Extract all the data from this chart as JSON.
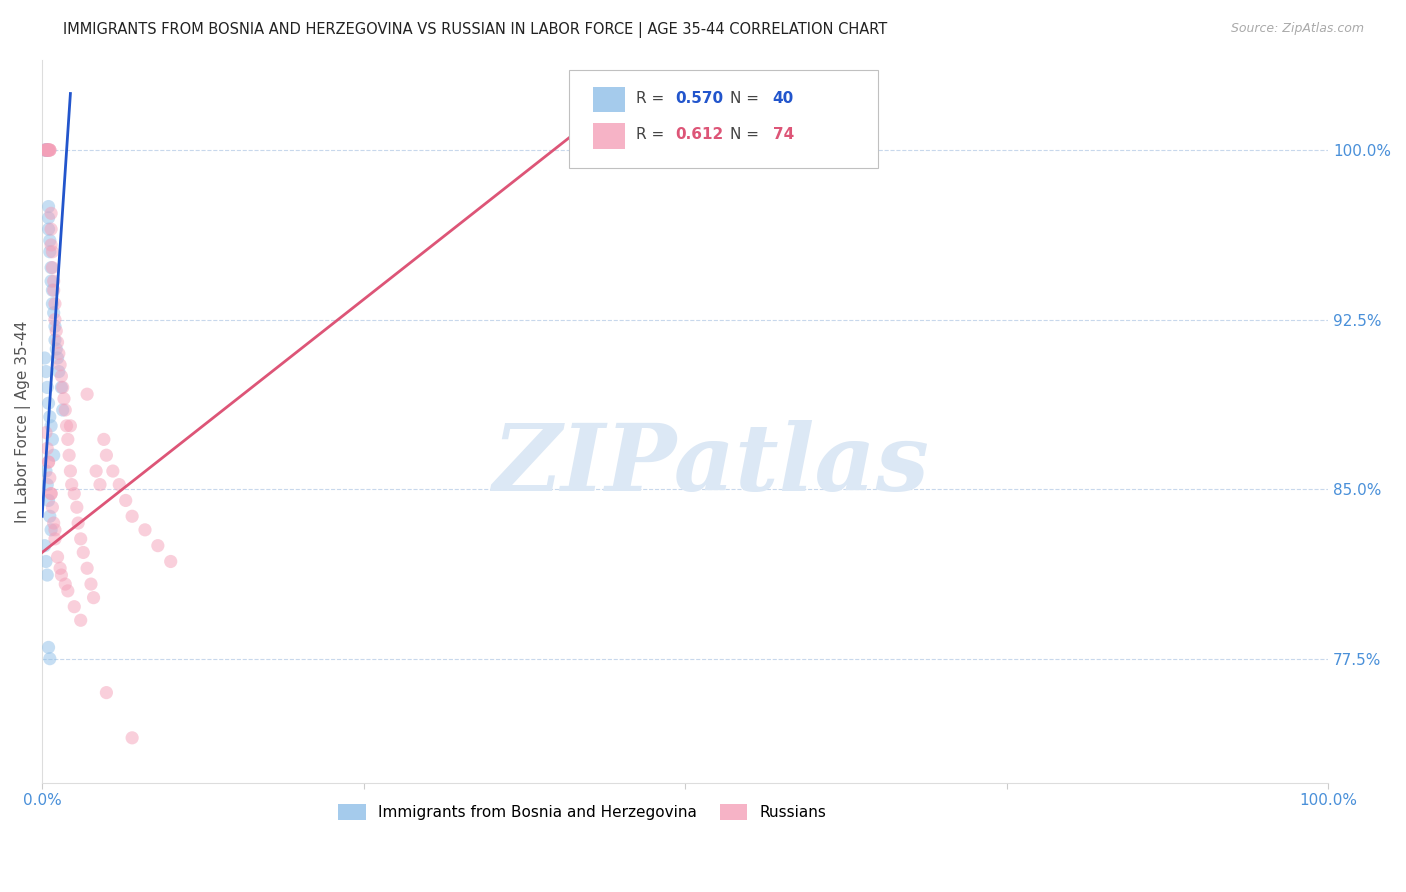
{
  "title": "IMMIGRANTS FROM BOSNIA AND HERZEGOVINA VS RUSSIAN IN LABOR FORCE | AGE 35-44 CORRELATION CHART",
  "source": "Source: ZipAtlas.com",
  "ylabel": "In Labor Force | Age 35-44",
  "ytick_labels": [
    "77.5%",
    "85.0%",
    "92.5%",
    "100.0%"
  ],
  "ytick_values": [
    0.775,
    0.85,
    0.925,
    1.0
  ],
  "xlim": [
    0.0,
    1.0
  ],
  "ylim": [
    0.72,
    1.04
  ],
  "blue_R": 0.57,
  "blue_N": 40,
  "pink_R": 0.612,
  "pink_N": 74,
  "blue_color": "#8fbfe8",
  "pink_color": "#f4a0b8",
  "blue_line_color": "#2255cc",
  "pink_line_color": "#dd5577",
  "watermark_text": "ZIPatlas",
  "watermark_color": "#dce8f5",
  "bg_color": "#ffffff",
  "grid_color": "#c8d8ec",
  "title_color": "#222222",
  "axis_tick_color": "#4a90d9",
  "ylabel_color": "#555555",
  "source_color": "#aaaaaa",
  "scatter_size": 90,
  "scatter_alpha": 0.5,
  "blue_scatter_x": [
    0.002,
    0.003,
    0.003,
    0.004,
    0.004,
    0.005,
    0.005,
    0.005,
    0.006,
    0.006,
    0.007,
    0.007,
    0.008,
    0.008,
    0.009,
    0.01,
    0.01,
    0.011,
    0.012,
    0.013,
    0.015,
    0.016,
    0.002,
    0.003,
    0.004,
    0.005,
    0.006,
    0.007,
    0.008,
    0.009,
    0.003,
    0.004,
    0.005,
    0.006,
    0.007,
    0.002,
    0.003,
    0.004,
    0.005,
    0.006
  ],
  "blue_scatter_y": [
    1.0,
    1.0,
    1.0,
    1.0,
    1.0,
    0.975,
    0.97,
    0.965,
    0.96,
    0.955,
    0.948,
    0.942,
    0.938,
    0.932,
    0.928,
    0.922,
    0.916,
    0.912,
    0.908,
    0.902,
    0.895,
    0.885,
    0.908,
    0.902,
    0.895,
    0.888,
    0.882,
    0.878,
    0.872,
    0.865,
    0.858,
    0.852,
    0.845,
    0.838,
    0.832,
    0.825,
    0.818,
    0.812,
    0.78,
    0.775
  ],
  "pink_scatter_x": [
    0.002,
    0.003,
    0.003,
    0.004,
    0.004,
    0.005,
    0.005,
    0.005,
    0.006,
    0.006,
    0.006,
    0.007,
    0.007,
    0.007,
    0.008,
    0.008,
    0.009,
    0.009,
    0.01,
    0.01,
    0.011,
    0.012,
    0.013,
    0.014,
    0.015,
    0.016,
    0.017,
    0.018,
    0.019,
    0.02,
    0.021,
    0.022,
    0.023,
    0.025,
    0.027,
    0.028,
    0.03,
    0.032,
    0.035,
    0.038,
    0.04,
    0.042,
    0.045,
    0.048,
    0.05,
    0.055,
    0.06,
    0.065,
    0.07,
    0.08,
    0.09,
    0.1,
    0.003,
    0.004,
    0.005,
    0.006,
    0.007,
    0.008,
    0.009,
    0.01,
    0.012,
    0.015,
    0.02,
    0.025,
    0.03,
    0.018,
    0.014,
    0.01,
    0.007,
    0.005,
    0.022,
    0.035,
    0.05,
    0.07
  ],
  "pink_scatter_y": [
    1.0,
    1.0,
    1.0,
    1.0,
    1.0,
    1.0,
    1.0,
    1.0,
    1.0,
    1.0,
    1.0,
    0.972,
    0.965,
    0.958,
    0.955,
    0.948,
    0.942,
    0.938,
    0.932,
    0.925,
    0.92,
    0.915,
    0.91,
    0.905,
    0.9,
    0.895,
    0.89,
    0.885,
    0.878,
    0.872,
    0.865,
    0.858,
    0.852,
    0.848,
    0.842,
    0.835,
    0.828,
    0.822,
    0.815,
    0.808,
    0.802,
    0.858,
    0.852,
    0.872,
    0.865,
    0.858,
    0.852,
    0.845,
    0.838,
    0.832,
    0.825,
    0.818,
    0.875,
    0.868,
    0.862,
    0.855,
    0.848,
    0.842,
    0.835,
    0.828,
    0.82,
    0.812,
    0.805,
    0.798,
    0.792,
    0.808,
    0.815,
    0.832,
    0.848,
    0.862,
    0.878,
    0.892,
    0.76,
    0.74
  ],
  "blue_trendline_x": [
    0.0,
    0.022
  ],
  "blue_trendline_y": [
    0.838,
    1.025
  ],
  "pink_trendline_x": [
    0.0,
    0.42
  ],
  "pink_trendline_y": [
    0.822,
    1.01
  ],
  "xtick_positions": [
    0.0,
    0.25,
    0.5,
    0.75,
    1.0
  ],
  "xtick_labels": [
    "0.0%",
    "",
    "",
    "",
    "100.0%"
  ]
}
